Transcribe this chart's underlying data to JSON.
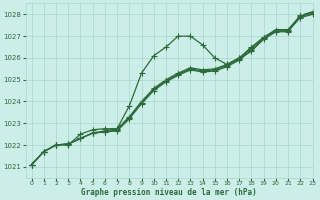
{
  "title": "Graphe pression niveau de la mer (hPa)",
  "bg_color": "#cceee8",
  "grid_color": "#aad4cc",
  "line_color": "#2d6b3c",
  "xlim": [
    -0.5,
    23
  ],
  "ylim": [
    1020.5,
    1028.5
  ],
  "yticks": [
    1021,
    1022,
    1023,
    1024,
    1025,
    1026,
    1027,
    1028
  ],
  "xticks": [
    0,
    1,
    2,
    3,
    4,
    5,
    6,
    7,
    8,
    9,
    10,
    11,
    12,
    13,
    14,
    15,
    16,
    17,
    18,
    19,
    20,
    21,
    22,
    23
  ],
  "series": [
    [
      1021.1,
      1021.7,
      1022.0,
      1022.0,
      1022.5,
      1022.7,
      1022.75,
      1022.75,
      1023.8,
      1025.3,
      1026.1,
      1026.5,
      1027.0,
      1027.0,
      1026.6,
      1026.0,
      1025.7,
      1026.0,
      1026.3,
      1026.9,
      1027.25,
      1027.25,
      1027.85,
      1028.0
    ],
    [
      1021.1,
      1021.7,
      1022.0,
      1022.05,
      1022.3,
      1022.55,
      1022.6,
      1022.65,
      1023.2,
      1023.9,
      1024.5,
      1024.9,
      1025.2,
      1025.45,
      1025.35,
      1025.4,
      1025.6,
      1025.9,
      1026.35,
      1026.85,
      1027.2,
      1027.2,
      1027.9,
      1028.05
    ],
    [
      1021.1,
      1021.7,
      1022.0,
      1022.05,
      1022.3,
      1022.55,
      1022.6,
      1022.7,
      1023.25,
      1023.95,
      1024.55,
      1024.95,
      1025.25,
      1025.5,
      1025.4,
      1025.45,
      1025.65,
      1025.95,
      1026.45,
      1026.9,
      1027.25,
      1027.25,
      1027.92,
      1028.1
    ],
    [
      1021.1,
      1021.7,
      1022.0,
      1022.05,
      1022.3,
      1022.55,
      1022.65,
      1022.75,
      1023.3,
      1024.0,
      1024.6,
      1025.0,
      1025.3,
      1025.55,
      1025.45,
      1025.5,
      1025.7,
      1026.0,
      1026.5,
      1026.95,
      1027.3,
      1027.3,
      1027.95,
      1028.12
    ]
  ],
  "marker_size": 4,
  "linewidth": 0.9
}
